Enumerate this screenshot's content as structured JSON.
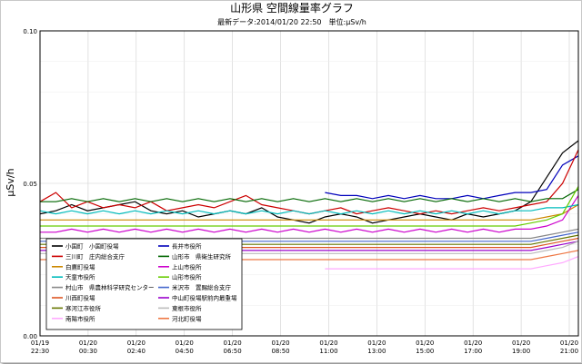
{
  "chart_data": {
    "type": "line",
    "title": "山形県 空間線量率グラフ",
    "subtitle": "最新データ:2014/01/20 22:50　単位:μSv/h",
    "ylabel": "μSv/h",
    "ylim": [
      0,
      0.1
    ],
    "yticks": [
      "0.00",
      "0.05",
      "0.10"
    ],
    "xticks": [
      {
        "date": "01/19",
        "time": "22:30"
      },
      {
        "date": "01/20",
        "time": "00:30"
      },
      {
        "date": "01/20",
        "time": "02:40"
      },
      {
        "date": "01/20",
        "time": "04:50"
      },
      {
        "date": "01/20",
        "time": "06:50"
      },
      {
        "date": "01/20",
        "time": "08:50"
      },
      {
        "date": "01/20",
        "time": "11:00"
      },
      {
        "date": "01/20",
        "time": "13:00"
      },
      {
        "date": "01/20",
        "time": "15:00"
      },
      {
        "date": "01/20",
        "time": "17:00"
      },
      {
        "date": "01/20",
        "time": "19:00"
      },
      {
        "date": "01/20",
        "time": "21:00"
      }
    ],
    "grid": true,
    "legend_position": "bottom-left",
    "series": [
      {
        "name": "小国町　小国町役場",
        "color": "#000000",
        "values": [
          0.04,
          0.041,
          0.043,
          0.041,
          0.042,
          0.043,
          0.044,
          0.041,
          0.04,
          0.041,
          0.039,
          0.04,
          0.041,
          0.04,
          0.042,
          0.039,
          0.038,
          0.037,
          0.039,
          0.04,
          0.039,
          0.037,
          0.038,
          0.039,
          0.04,
          0.039,
          0.038,
          0.04,
          0.039,
          0.04,
          0.041,
          0.044,
          0.052,
          0.06,
          0.064
        ]
      },
      {
        "name": "長井市役所",
        "color": "#0000bb",
        "values": [
          null,
          null,
          null,
          null,
          null,
          null,
          null,
          null,
          null,
          null,
          null,
          null,
          null,
          null,
          null,
          null,
          null,
          null,
          0.047,
          0.046,
          0.046,
          0.045,
          0.046,
          0.045,
          0.046,
          0.045,
          0.045,
          0.046,
          0.045,
          0.046,
          0.047,
          0.047,
          0.048,
          0.056,
          0.059
        ]
      },
      {
        "name": "三川町　庄内総合支庁",
        "color": "#cc0000",
        "values": [
          0.044,
          0.047,
          0.042,
          0.044,
          0.042,
          0.043,
          0.042,
          0.044,
          0.041,
          0.042,
          0.043,
          0.042,
          0.044,
          0.046,
          0.043,
          0.042,
          0.041,
          0.04,
          0.041,
          0.042,
          0.04,
          0.041,
          0.042,
          0.041,
          0.04,
          0.041,
          0.04,
          0.041,
          0.042,
          0.041,
          0.042,
          0.043,
          0.044,
          0.05,
          0.061
        ]
      },
      {
        "name": "山形市　県衛生研究所",
        "color": "#006600",
        "values": [
          0.044,
          0.044,
          0.045,
          0.044,
          0.045,
          0.044,
          0.045,
          0.044,
          0.045,
          0.044,
          0.045,
          0.044,
          0.045,
          0.044,
          0.045,
          0.044,
          0.045,
          0.044,
          0.045,
          0.044,
          0.045,
          0.044,
          0.045,
          0.044,
          0.045,
          0.044,
          0.045,
          0.044,
          0.045,
          0.044,
          0.045,
          0.044,
          0.045,
          0.045,
          0.048
        ]
      },
      {
        "name": "白鷹町役場",
        "color": "#cc8800",
        "values": [
          0.038,
          0.038,
          0.038,
          0.038,
          0.038,
          0.038,
          0.038,
          0.038,
          0.038,
          0.038,
          0.038,
          0.038,
          0.038,
          0.038,
          0.038,
          0.038,
          0.038,
          0.038,
          0.038,
          0.038,
          0.038,
          0.038,
          0.038,
          0.038,
          0.038,
          0.038,
          0.038,
          0.038,
          0.038,
          0.038,
          0.038,
          0.038,
          0.039,
          0.04,
          0.043
        ]
      },
      {
        "name": "上山市役所",
        "color": "#cc00cc",
        "values": [
          0.034,
          0.034,
          0.035,
          0.034,
          0.035,
          0.034,
          0.035,
          0.034,
          0.035,
          0.034,
          0.035,
          0.034,
          0.035,
          0.034,
          0.035,
          0.034,
          0.035,
          0.034,
          0.035,
          0.034,
          0.035,
          0.034,
          0.035,
          0.034,
          0.035,
          0.034,
          0.035,
          0.034,
          0.035,
          0.034,
          0.035,
          0.035,
          0.036,
          0.038,
          0.046
        ]
      },
      {
        "name": "天童市役所",
        "color": "#00bbbb",
        "values": [
          0.041,
          0.04,
          0.041,
          0.04,
          0.041,
          0.04,
          0.041,
          0.04,
          0.041,
          0.04,
          0.041,
          0.04,
          0.041,
          0.04,
          0.041,
          0.04,
          0.041,
          0.04,
          0.041,
          0.04,
          0.041,
          0.04,
          0.041,
          0.04,
          0.041,
          0.04,
          0.041,
          0.04,
          0.041,
          0.04,
          0.041,
          0.041,
          0.042,
          0.042,
          0.043
        ]
      },
      {
        "name": "山形市役所",
        "color": "#66cc00",
        "values": [
          0.036,
          0.036,
          0.036,
          0.036,
          0.036,
          0.036,
          0.036,
          0.036,
          0.036,
          0.036,
          0.036,
          0.036,
          0.036,
          0.036,
          0.036,
          0.036,
          0.036,
          0.036,
          0.036,
          0.036,
          0.036,
          0.036,
          0.036,
          0.036,
          0.036,
          0.036,
          0.036,
          0.036,
          0.036,
          0.036,
          0.036,
          0.037,
          0.038,
          0.04,
          0.049
        ]
      },
      {
        "name": "村山市　県農林科学研究センター",
        "color": "#888888",
        "values": [
          0.032,
          0.032,
          0.032,
          0.032,
          0.032,
          0.032,
          0.032,
          0.032,
          0.032,
          0.032,
          0.032,
          0.032,
          0.032,
          0.032,
          0.032,
          0.032,
          0.032,
          0.032,
          0.032,
          0.032,
          0.032,
          0.032,
          0.032,
          0.032,
          0.032,
          0.032,
          0.032,
          0.032,
          0.032,
          0.032,
          0.032,
          0.032,
          0.033,
          0.034,
          0.035
        ]
      },
      {
        "name": "米沢市　置賜総合支庁",
        "color": "#4466cc",
        "values": [
          0.031,
          0.031,
          0.031,
          0.031,
          0.031,
          0.031,
          0.031,
          0.031,
          0.031,
          0.031,
          0.031,
          0.031,
          0.031,
          0.031,
          0.031,
          0.031,
          0.031,
          0.031,
          0.031,
          0.031,
          0.031,
          0.031,
          0.031,
          0.031,
          0.031,
          0.031,
          0.031,
          0.031,
          0.031,
          0.031,
          0.031,
          0.031,
          0.032,
          0.033,
          0.034
        ]
      },
      {
        "name": "川西町役場",
        "color": "#dd5522",
        "values": [
          0.029,
          0.029,
          0.029,
          0.029,
          0.029,
          0.029,
          0.029,
          0.029,
          0.029,
          0.029,
          0.029,
          0.029,
          0.029,
          0.029,
          0.029,
          0.029,
          0.029,
          0.029,
          0.029,
          0.029,
          0.029,
          0.029,
          0.029,
          0.029,
          0.029,
          0.029,
          0.029,
          0.029,
          0.029,
          0.029,
          0.029,
          0.029,
          0.03,
          0.031,
          0.032
        ]
      },
      {
        "name": "中山町役場駅前内最重場",
        "color": "#9900cc",
        "values": [
          0.028,
          0.028,
          0.028,
          0.028,
          0.028,
          0.028,
          0.028,
          0.028,
          0.028,
          0.028,
          0.028,
          0.028,
          0.028,
          0.028,
          0.028,
          0.028,
          0.028,
          0.028,
          0.028,
          0.028,
          0.028,
          0.028,
          0.028,
          0.028,
          0.028,
          0.028,
          0.028,
          0.028,
          0.028,
          0.028,
          0.028,
          0.028,
          0.029,
          0.03,
          0.031
        ]
      },
      {
        "name": "寒河江市役所",
        "color": "#667700",
        "values": [
          0.03,
          0.03,
          0.03,
          0.03,
          0.03,
          0.03,
          0.03,
          0.03,
          0.03,
          0.03,
          0.03,
          0.03,
          0.03,
          0.03,
          0.03,
          0.03,
          0.03,
          0.03,
          0.03,
          0.03,
          0.03,
          0.03,
          0.03,
          0.03,
          0.03,
          0.03,
          0.03,
          0.03,
          0.03,
          0.03,
          0.03,
          0.03,
          0.031,
          0.032,
          0.033
        ]
      },
      {
        "name": "東根市役所",
        "color": "#bbbbbb",
        "values": [
          0.027,
          0.027,
          0.027,
          0.027,
          0.027,
          0.027,
          0.027,
          0.027,
          0.027,
          0.027,
          0.027,
          0.027,
          0.027,
          0.027,
          0.027,
          0.027,
          0.027,
          0.027,
          0.027,
          0.027,
          0.027,
          0.027,
          0.027,
          0.027,
          0.027,
          0.027,
          0.027,
          0.027,
          0.027,
          0.027,
          0.027,
          0.027,
          0.028,
          0.029,
          0.031
        ]
      },
      {
        "name": "南陽市役所",
        "color": "#ffaaff",
        "values": [
          null,
          null,
          null,
          null,
          null,
          null,
          null,
          null,
          null,
          null,
          null,
          null,
          null,
          null,
          null,
          null,
          null,
          null,
          0.022,
          0.022,
          0.022,
          0.022,
          0.022,
          0.022,
          0.022,
          0.022,
          0.022,
          0.022,
          0.022,
          0.022,
          0.022,
          0.022,
          0.023,
          0.024,
          0.026
        ]
      },
      {
        "name": "河北町役場",
        "color": "#ee7744",
        "values": [
          0.025,
          0.025,
          0.025,
          0.025,
          0.025,
          0.025,
          0.025,
          0.025,
          0.025,
          0.025,
          0.025,
          0.025,
          0.025,
          0.025,
          0.025,
          0.025,
          0.025,
          0.025,
          0.025,
          0.025,
          0.025,
          0.025,
          0.025,
          0.025,
          0.025,
          0.025,
          0.025,
          0.025,
          0.025,
          0.025,
          0.025,
          0.025,
          0.026,
          0.027,
          0.028
        ]
      }
    ]
  }
}
